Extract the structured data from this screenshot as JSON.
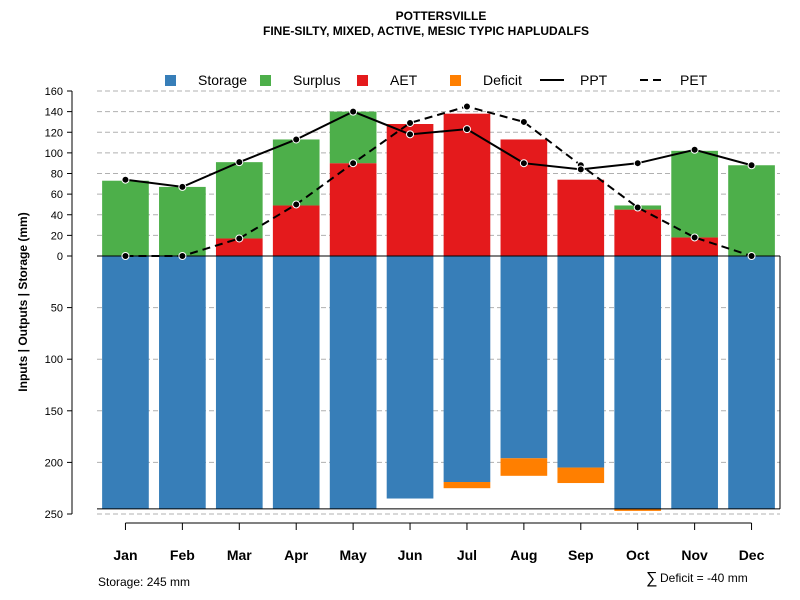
{
  "chart_data": {
    "type": "bar",
    "title": "POTTERSVILLE",
    "subtitle": "FINE-SILTY, MIXED, ACTIVE, MESIC TYPIC HAPLUDALFS",
    "ylabel": "Inputs | Outputs | Storage    (mm)",
    "categories": [
      "Jan",
      "Feb",
      "Mar",
      "Apr",
      "May",
      "Jun",
      "Jul",
      "Aug",
      "Sep",
      "Oct",
      "Nov",
      "Dec"
    ],
    "upper_ylim": [
      0,
      160
    ],
    "upper_ticks": [
      "0",
      "20",
      "40",
      "60",
      "80",
      "100",
      "120",
      "140",
      "160"
    ],
    "lower_ylim": [
      0,
      250
    ],
    "lower_ticks": [
      "50",
      "100",
      "150",
      "200",
      "250"
    ],
    "series": [
      {
        "name": "AET",
        "values": [
          0,
          0,
          17,
          49,
          90,
          128,
          138,
          113,
          74,
          45,
          18,
          0
        ]
      },
      {
        "name": "Surplus",
        "values": [
          73,
          67,
          74,
          64,
          50,
          0,
          0,
          0,
          0,
          4,
          84,
          88
        ]
      },
      {
        "name": "Storage",
        "values": [
          245,
          245,
          245,
          245,
          245,
          235,
          219,
          196,
          205,
          245,
          245,
          245
        ]
      },
      {
        "name": "Deficit",
        "values": [
          0,
          0,
          0,
          0,
          0,
          0,
          6,
          17,
          15,
          2,
          0,
          0
        ]
      },
      {
        "name": "PPT",
        "values": [
          74,
          67,
          91,
          113,
          140,
          118,
          123,
          90,
          84,
          90,
          103,
          88
        ]
      },
      {
        "name": "PET",
        "values": [
          0,
          0,
          17,
          50,
          90,
          129,
          145,
          130,
          88,
          47,
          18,
          0
        ]
      }
    ],
    "legend": {
      "placement": "top",
      "items": [
        {
          "label": "Storage",
          "kind": "box",
          "color": "#377EB8"
        },
        {
          "label": "Surplus",
          "kind": "box",
          "color": "#4DAF4A"
        },
        {
          "label": "AET",
          "kind": "box",
          "color": "#E41A1C"
        },
        {
          "label": "Deficit",
          "kind": "box",
          "color": "#FF7F00"
        },
        {
          "label": "PPT",
          "kind": "solid-line",
          "color": "#000000"
        },
        {
          "label": "PET",
          "kind": "dashed-line",
          "color": "#000000"
        }
      ]
    },
    "colors": {
      "storage": "#377EB8",
      "surplus": "#4DAF4A",
      "aet": "#E41A1C",
      "deficit": "#FF7F00",
      "lines": "#000000",
      "grid": "#b0b0b0"
    },
    "grid": true
  },
  "notes": {
    "storage": "Storage: 245 mm",
    "deficit_symbol": "∑",
    "deficit": "Deficit = -40 mm"
  }
}
